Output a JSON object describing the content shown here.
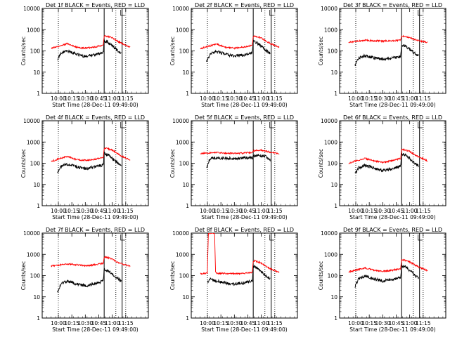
{
  "figure": {
    "background": "#ffffff",
    "colors": {
      "events": "#000000",
      "lld": "#ff0000",
      "axis": "#000000"
    }
  },
  "chart_data": [
    {
      "type": "line",
      "title": "Det 1f BLACK = Events, RED = LLD",
      "xlabel": "Start Time (28-Dec-11 09:49:00)",
      "ylabel": "Counts/sec",
      "yscale": "log",
      "ylim": [
        1,
        10000
      ],
      "xlim_minutes": [
        9.7,
        11.67
      ],
      "x_tick_labels": [
        "10:00",
        "10:15",
        "10:30",
        "10:45",
        "11:00",
        "11:15"
      ],
      "y_tick_labels": [
        "1",
        "10",
        "100",
        "1000",
        "10000"
      ],
      "dotted_lines_at": [
        "10:00",
        "11:04",
        "11:15"
      ],
      "solid_lines_at": [
        "10:51",
        "11:11"
      ],
      "series": [
        {
          "color": "#000000",
          "x": [
            "09:59",
            "10:03",
            "10:10",
            "10:20",
            "10:30",
            "10:40",
            "10:50",
            "10:51",
            "10:55",
            "11:00",
            "11:05",
            "11:10"
          ],
          "values": [
            40,
            80,
            100,
            70,
            55,
            65,
            85,
            300,
            260,
            180,
            110,
            80
          ]
        },
        {
          "color": "#ff0000",
          "x": [
            "09:52",
            "10:00",
            "10:10",
            "10:20",
            "10:30",
            "10:40",
            "10:50",
            "10:51",
            "10:55",
            "11:00",
            "11:05",
            "11:10",
            "11:20"
          ],
          "values": [
            130,
            160,
            220,
            150,
            135,
            150,
            190,
            520,
            480,
            420,
            300,
            230,
            150
          ]
        }
      ]
    },
    {
      "type": "line",
      "title": "Det 2f BLACK = Events, RED = LLD",
      "xlabel": "Start Time (28-Dec-11 09:49:00)",
      "ylabel": "Counts/sec",
      "yscale": "log",
      "ylim": [
        1,
        10000
      ],
      "xlim_minutes": [
        9.7,
        11.67
      ],
      "x_tick_labels": [
        "10:00",
        "10:15",
        "10:30",
        "10:45",
        "11:00",
        "11:15"
      ],
      "y_tick_labels": [
        "1",
        "10",
        "100",
        "1000",
        "10000"
      ],
      "dotted_lines_at": [
        "10:00",
        "11:04",
        "11:15"
      ],
      "solid_lines_at": [
        "10:51",
        "11:11"
      ],
      "series": [
        {
          "color": "#000000",
          "x": [
            "09:59",
            "10:03",
            "10:10",
            "10:20",
            "10:30",
            "10:40",
            "10:50",
            "10:51",
            "10:55",
            "11:00",
            "11:05",
            "11:10"
          ],
          "values": [
            30,
            70,
            95,
            70,
            55,
            65,
            85,
            280,
            240,
            170,
            110,
            75
          ]
        },
        {
          "color": "#ff0000",
          "x": [
            "09:52",
            "10:00",
            "10:10",
            "10:20",
            "10:30",
            "10:40",
            "10:50",
            "10:51",
            "10:55",
            "11:00",
            "11:05",
            "11:10",
            "11:20"
          ],
          "values": [
            130,
            160,
            210,
            150,
            135,
            150,
            185,
            500,
            470,
            400,
            290,
            220,
            150
          ]
        }
      ]
    },
    {
      "type": "line",
      "title": "Det 3f BLACK = Events, RED = LLD",
      "xlabel": "Start Time (28-Dec-11 09:49:00)",
      "ylabel": "Counts/sec",
      "yscale": "log",
      "ylim": [
        1,
        10000
      ],
      "xlim_minutes": [
        9.7,
        11.67
      ],
      "x_tick_labels": [
        "10:00",
        "10:15",
        "10:30",
        "10:45",
        "11:00",
        "11:15"
      ],
      "y_tick_labels": [
        "1",
        "10",
        "100",
        "1000",
        "10000"
      ],
      "dotted_lines_at": [
        "10:00",
        "11:04",
        "11:15"
      ],
      "solid_lines_at": [
        "10:51",
        "11:11"
      ],
      "series": [
        {
          "color": "#000000",
          "x": [
            "09:59",
            "10:03",
            "10:10",
            "10:20",
            "10:30",
            "10:40",
            "10:50",
            "10:51",
            "10:55",
            "11:00",
            "11:05",
            "11:10"
          ],
          "values": [
            20,
            45,
            60,
            48,
            40,
            45,
            55,
            200,
            170,
            120,
            80,
            60
          ]
        },
        {
          "color": "#ff0000",
          "x": [
            "09:52",
            "10:00",
            "10:10",
            "10:20",
            "10:30",
            "10:40",
            "10:50",
            "10:51",
            "10:55",
            "11:00",
            "11:05",
            "11:10",
            "11:20"
          ],
          "values": [
            260,
            280,
            320,
            300,
            290,
            300,
            320,
            500,
            470,
            420,
            350,
            300,
            250
          ]
        }
      ]
    },
    {
      "type": "line",
      "title": "Det 4f BLACK = Events, RED = LLD",
      "xlabel": "Start Time (28-Dec-11 09:49:00)",
      "ylabel": "Counts/sec",
      "yscale": "log",
      "ylim": [
        1,
        10000
      ],
      "xlim_minutes": [
        9.7,
        11.67
      ],
      "x_tick_labels": [
        "10:00",
        "10:15",
        "10:30",
        "10:45",
        "11:00",
        "11:15"
      ],
      "y_tick_labels": [
        "1",
        "10",
        "100",
        "1000",
        "10000"
      ],
      "dotted_lines_at": [
        "10:00",
        "11:04",
        "11:15"
      ],
      "solid_lines_at": [
        "10:51",
        "11:11"
      ],
      "series": [
        {
          "color": "#000000",
          "x": [
            "09:59",
            "10:03",
            "10:10",
            "10:20",
            "10:30",
            "10:40",
            "10:50",
            "10:51",
            "10:55",
            "11:00",
            "11:05",
            "11:10"
          ],
          "values": [
            35,
            70,
            90,
            70,
            55,
            65,
            85,
            280,
            250,
            170,
            110,
            75
          ]
        },
        {
          "color": "#ff0000",
          "x": [
            "09:52",
            "10:00",
            "10:10",
            "10:20",
            "10:30",
            "10:40",
            "10:50",
            "10:51",
            "10:55",
            "11:00",
            "11:05",
            "11:10",
            "11:20"
          ],
          "values": [
            120,
            160,
            210,
            150,
            135,
            150,
            190,
            520,
            480,
            420,
            300,
            220,
            140
          ]
        }
      ]
    },
    {
      "type": "line",
      "title": "Det 5f BLACK = Events, RED = LLD",
      "xlabel": "Start Time (28-Dec-11 09:49:00)",
      "ylabel": "Counts/sec",
      "yscale": "log",
      "ylim": [
        1,
        10000
      ],
      "xlim_minutes": [
        9.7,
        11.67
      ],
      "x_tick_labels": [
        "10:00",
        "10:15",
        "10:30",
        "10:45",
        "11:00",
        "11:15"
      ],
      "y_tick_labels": [
        "1",
        "10",
        "100",
        "1000",
        "10000"
      ],
      "dotted_lines_at": [
        "10:00",
        "11:04",
        "11:15"
      ],
      "solid_lines_at": [
        "10:51",
        "11:11"
      ],
      "series": [
        {
          "color": "#000000",
          "x": [
            "09:59",
            "10:03",
            "10:10",
            "10:20",
            "10:30",
            "10:40",
            "10:50",
            "10:51",
            "10:55",
            "11:00",
            "11:05",
            "11:10"
          ],
          "values": [
            60,
            170,
            180,
            175,
            170,
            175,
            185,
            220,
            230,
            230,
            200,
            140
          ]
        },
        {
          "color": "#ff0000",
          "x": [
            "09:52",
            "10:00",
            "10:10",
            "10:20",
            "10:30",
            "10:40",
            "10:50",
            "10:51",
            "10:55",
            "11:00",
            "11:05",
            "11:10",
            "11:20"
          ],
          "values": [
            280,
            300,
            330,
            300,
            290,
            300,
            320,
            380,
            400,
            410,
            380,
            330,
            280
          ]
        }
      ]
    },
    {
      "type": "line",
      "title": "Det 6f BLACK = Events, RED = LLD",
      "xlabel": "Start Time (28-Dec-11 09:49:00)",
      "ylabel": "Counts/sec",
      "yscale": "log",
      "ylim": [
        1,
        10000
      ],
      "xlim_minutes": [
        9.7,
        11.67
      ],
      "x_tick_labels": [
        "10:00",
        "10:15",
        "10:30",
        "10:45",
        "11:00",
        "11:15"
      ],
      "y_tick_labels": [
        "1",
        "10",
        "100",
        "1000",
        "10000"
      ],
      "dotted_lines_at": [
        "10:00",
        "11:04",
        "11:15"
      ],
      "solid_lines_at": [
        "10:51",
        "11:11"
      ],
      "series": [
        {
          "color": "#000000",
          "x": [
            "09:59",
            "10:03",
            "10:10",
            "10:20",
            "10:30",
            "10:40",
            "10:50",
            "10:51",
            "10:55",
            "11:00",
            "11:05",
            "11:10"
          ],
          "values": [
            30,
            60,
            80,
            60,
            45,
            55,
            75,
            280,
            250,
            170,
            110,
            75
          ]
        },
        {
          "color": "#ff0000",
          "x": [
            "09:52",
            "10:00",
            "10:10",
            "10:20",
            "10:30",
            "10:40",
            "10:50",
            "10:51",
            "10:55",
            "11:00",
            "11:05",
            "11:10",
            "11:20"
          ],
          "values": [
            100,
            130,
            170,
            130,
            110,
            130,
            170,
            460,
            420,
            360,
            260,
            200,
            130
          ]
        }
      ]
    },
    {
      "type": "line",
      "title": "Det 7f BLACK = Events, RED = LLD",
      "xlabel": "Start Time (28-Dec-11 09:49:00)",
      "ylabel": "Counts/sec",
      "yscale": "log",
      "ylim": [
        1,
        10000
      ],
      "xlim_minutes": [
        9.7,
        11.67
      ],
      "x_tick_labels": [
        "10:00",
        "10:15",
        "10:30",
        "10:45",
        "11:00",
        "11:15"
      ],
      "y_tick_labels": [
        "1",
        "10",
        "100",
        "1000",
        "10000"
      ],
      "dotted_lines_at": [
        "10:00",
        "11:04",
        "11:15"
      ],
      "solid_lines_at": [
        "10:51",
        "11:11"
      ],
      "series": [
        {
          "color": "#000000",
          "x": [
            "09:59",
            "10:03",
            "10:10",
            "10:20",
            "10:30",
            "10:40",
            "10:50",
            "10:51",
            "10:55",
            "11:00",
            "11:05",
            "11:10"
          ],
          "values": [
            15,
            40,
            55,
            40,
            33,
            40,
            55,
            200,
            170,
            120,
            80,
            55
          ]
        },
        {
          "color": "#ff0000",
          "x": [
            "09:52",
            "10:00",
            "10:10",
            "10:20",
            "10:30",
            "10:40",
            "10:50",
            "10:51",
            "10:55",
            "11:00",
            "11:05",
            "11:10",
            "11:20"
          ],
          "values": [
            280,
            310,
            360,
            320,
            290,
            320,
            380,
            750,
            700,
            580,
            450,
            360,
            280
          ]
        }
      ]
    },
    {
      "type": "line",
      "title": "Det 8f BLACK = Events, RED = LLD",
      "xlabel": "Start Time (28-Dec-11 09:49:00)",
      "ylabel": "Counts/sec",
      "yscale": "log",
      "ylim": [
        1,
        10000
      ],
      "xlim_minutes": [
        9.7,
        11.67
      ],
      "x_tick_labels": [
        "10:00",
        "10:15",
        "10:30",
        "10:45",
        "11:00",
        "11:15"
      ],
      "y_tick_labels": [
        "1",
        "10",
        "100",
        "1000",
        "10000"
      ],
      "dotted_lines_at": [
        "10:00",
        "11:04",
        "11:15"
      ],
      "solid_lines_at": [
        "10:51",
        "11:11"
      ],
      "series": [
        {
          "color": "#000000",
          "x": [
            "10:00",
            "10:03",
            "10:10",
            "10:20",
            "10:30",
            "10:40",
            "10:50",
            "10:51",
            "10:55",
            "11:00",
            "11:05",
            "11:10"
          ],
          "values": [
            50,
            70,
            55,
            45,
            40,
            45,
            55,
            280,
            230,
            160,
            100,
            70
          ]
        },
        {
          "color": "#ff0000",
          "x": [
            "09:52",
            "10:00",
            "10:01",
            "10:02",
            "10:08",
            "10:09",
            "10:10",
            "10:20",
            "10:30",
            "10:40",
            "10:50",
            "10:51",
            "10:55",
            "11:00",
            "11:05",
            "11:10",
            "11:20"
          ],
          "values": [
            120,
            130,
            10000,
            10000,
            10000,
            150,
            130,
            125,
            120,
            125,
            140,
            500,
            460,
            380,
            280,
            210,
            140
          ]
        }
      ]
    },
    {
      "type": "line",
      "title": "Det 9f BLACK = Events, RED = LLD",
      "xlabel": "Start Time (28-Dec-11 09:49:00)",
      "ylabel": "Counts/sec",
      "yscale": "log",
      "ylim": [
        1,
        10000
      ],
      "xlim_minutes": [
        9.7,
        11.67
      ],
      "x_tick_labels": [
        "10:00",
        "10:15",
        "10:30",
        "10:45",
        "11:00",
        "11:15"
      ],
      "y_tick_labels": [
        "1",
        "10",
        "100",
        "1000",
        "10000"
      ],
      "dotted_lines_at": [
        "10:00",
        "11:04",
        "11:15"
      ],
      "solid_lines_at": [
        "10:51",
        "11:11"
      ],
      "series": [
        {
          "color": "#000000",
          "x": [
            "09:59",
            "10:03",
            "10:10",
            "10:20",
            "10:30",
            "10:40",
            "10:50",
            "10:51",
            "10:55",
            "11:00",
            "11:05",
            "11:10"
          ],
          "values": [
            30,
            70,
            95,
            70,
            55,
            65,
            85,
            300,
            260,
            180,
            110,
            75
          ]
        },
        {
          "color": "#ff0000",
          "x": [
            "09:52",
            "10:00",
            "10:10",
            "10:20",
            "10:30",
            "10:40",
            "10:50",
            "10:51",
            "10:55",
            "11:00",
            "11:05",
            "11:10",
            "11:20"
          ],
          "values": [
            150,
            180,
            230,
            180,
            160,
            175,
            210,
            560,
            520,
            440,
            330,
            250,
            170
          ]
        }
      ]
    }
  ]
}
